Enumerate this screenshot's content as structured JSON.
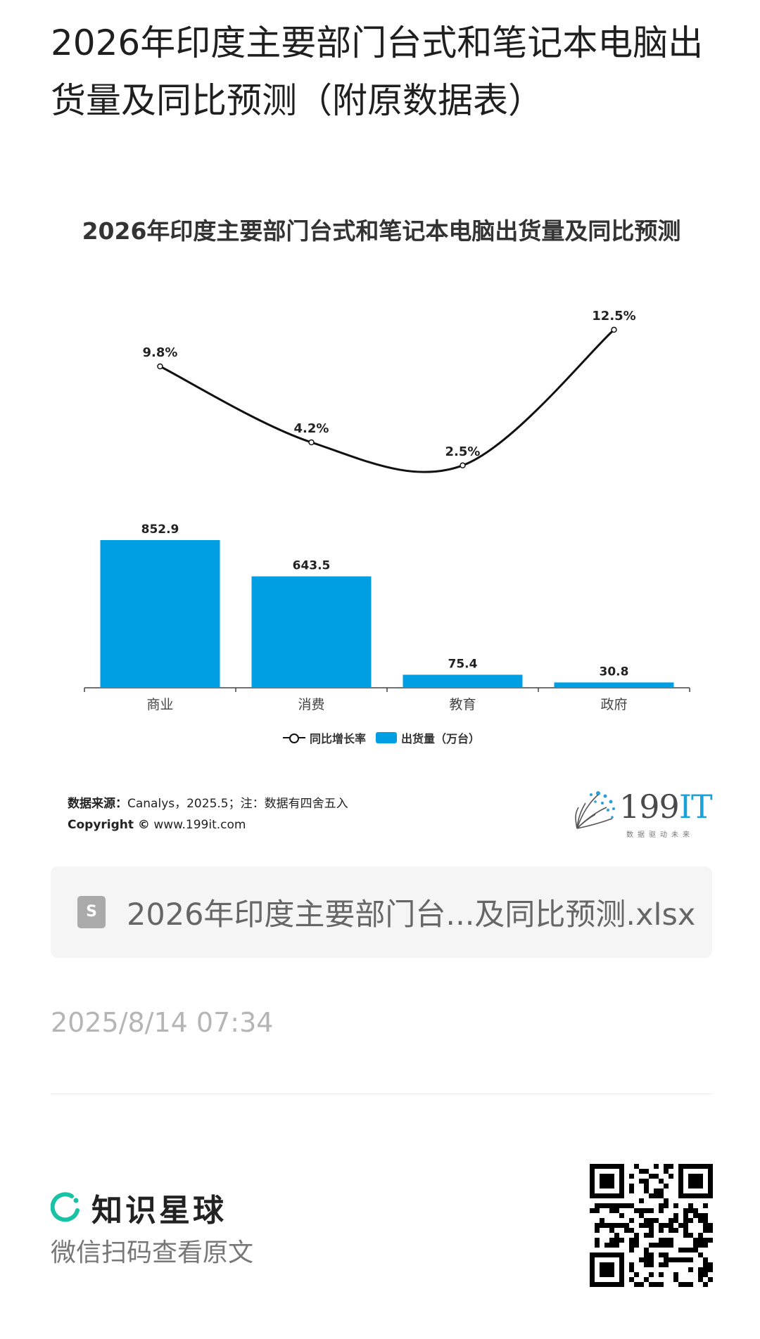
{
  "page": {
    "title": "2026年印度主要部门台式和笔记本电脑出货量及同比预测（附原数据表）"
  },
  "chart": {
    "title": "2026年印度主要部门台式和笔记本电脑出货量及同比预测",
    "legend": {
      "line_label": "同比增长率",
      "bar_label": "出货量（万台）"
    },
    "source_label": "数据来源：",
    "source_text": "Canalys，2025.5；注：数据有四舍五入",
    "copyright_label": "Copyright ©",
    "copyright_text": "www.199it.com",
    "colors": {
      "bar": "#009fe3",
      "line": "#111111"
    }
  },
  "chart_data": {
    "type": "bar",
    "categories": [
      "商业",
      "消费",
      "教育",
      "政府"
    ],
    "series": [
      {
        "name": "出货量（万台）",
        "type": "bar",
        "values": [
          852.9,
          643.5,
          75.4,
          30.8
        ],
        "labels": [
          "852.9",
          "643.5",
          "75.4",
          "30.8"
        ]
      },
      {
        "name": "同比增长率",
        "type": "line",
        "values": [
          9.8,
          4.2,
          2.5,
          12.5
        ],
        "labels": [
          "9.8%",
          "4.2%",
          "2.5%",
          "12.5%"
        ]
      }
    ],
    "title": "2026年印度主要部门台式和笔记本电脑出货量及同比预测",
    "xlabel": "",
    "ylabel": "",
    "ylim": [
      0,
      900
    ],
    "grid": false,
    "legend_position": "bottom"
  },
  "brand": {
    "name_prefix": "199",
    "name_suffix": "IT",
    "slogan": "数据驱动未来"
  },
  "file": {
    "icon_letter": "S",
    "name": "2026年印度主要部门台...及同比预测.xlsx"
  },
  "timestamp": "2025/8/14 07:34",
  "footer": {
    "app_name": "知识星球",
    "scan_hint": "微信扫码查看原文"
  }
}
